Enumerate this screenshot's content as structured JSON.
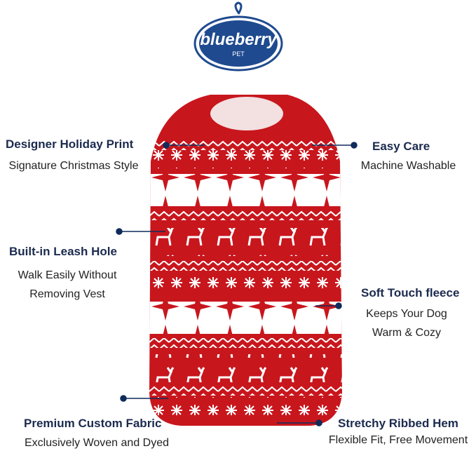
{
  "brand": {
    "name": "blueberry",
    "sub": "PET",
    "color": "#1f4a8f"
  },
  "accent": "#0f2b5b",
  "vest_colors": {
    "red": "#c8161d",
    "white": "#ffffff"
  },
  "features": [
    {
      "title": "Designer Holiday Print",
      "desc": [
        "Signature Christmas Style"
      ]
    },
    {
      "title": "Easy Care",
      "desc": [
        "Machine Washable"
      ]
    },
    {
      "title": "Built-in Leash Hole",
      "desc": [
        "Walk Easily Without",
        "Removing Vest"
      ]
    },
    {
      "title": "Soft Touch fleece",
      "desc": [
        "Keeps Your Dog",
        "Warm & Cozy"
      ]
    },
    {
      "title": "Premium Custom Fabric",
      "desc": [
        "Exclusively Woven and Dyed"
      ]
    },
    {
      "title": "Stretchy Ribbed Hem",
      "desc": [
        "Flexible Fit, Free Movement"
      ]
    }
  ]
}
